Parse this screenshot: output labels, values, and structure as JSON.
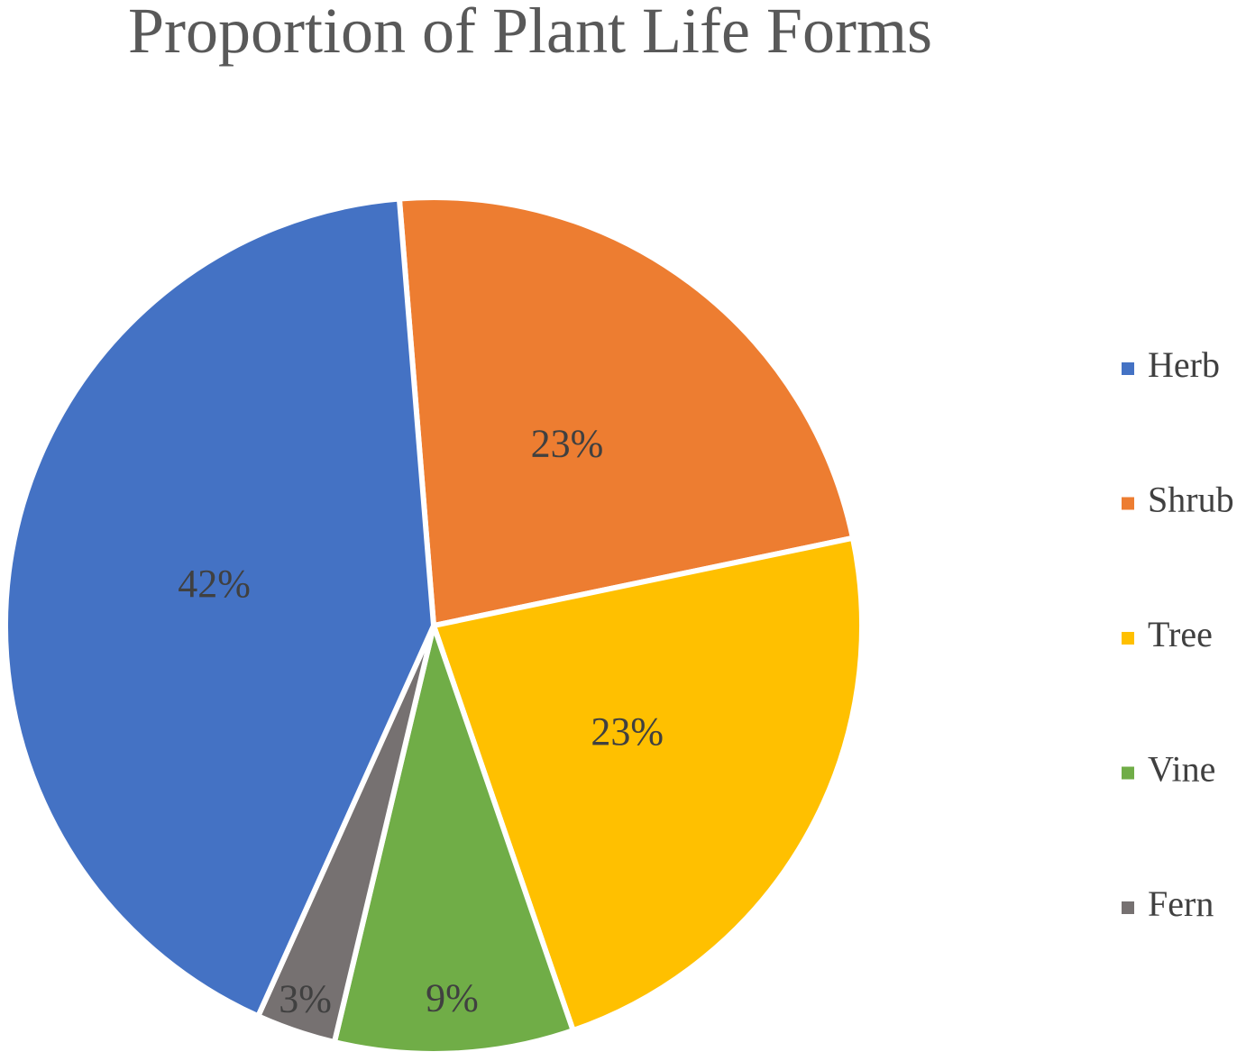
{
  "chart_data": {
    "type": "pie",
    "title": "Proportion of Plant Life Forms",
    "categories": [
      "Herb",
      "Shrub",
      "Tree",
      "Vine",
      "Fern"
    ],
    "values": [
      42,
      23,
      23,
      9,
      3
    ],
    "labels": [
      "42%",
      "23%",
      "23%",
      "9%",
      "3%"
    ],
    "colors": [
      "#4472C4",
      "#ED7D31",
      "#FFC000",
      "#70AD47",
      "#767171"
    ],
    "legend": "right"
  }
}
